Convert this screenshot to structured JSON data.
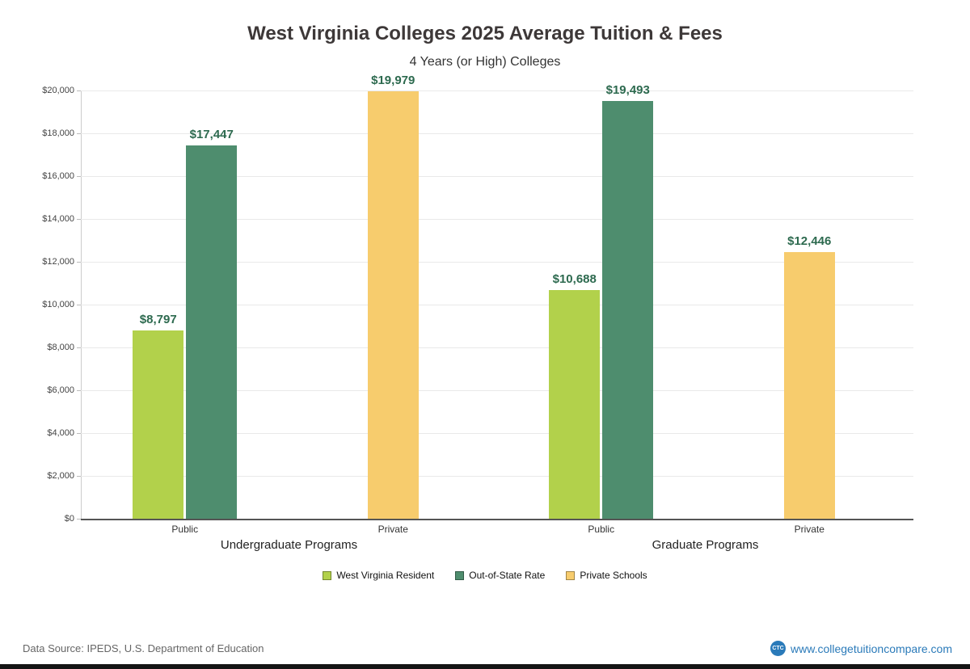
{
  "chart_data": {
    "type": "bar",
    "title": "West Virginia Colleges 2025 Average Tuition & Fees",
    "subtitle": "4 Years (or High) Colleges",
    "y_axis": {
      "min": 0,
      "max": 20000,
      "step": 2000,
      "tick_labels": [
        "$0",
        "$2,000",
        "$4,000",
        "$6,000",
        "$8,000",
        "$10,000",
        "$12,000",
        "$14,000",
        "$16,000",
        "$18,000",
        "$20,000"
      ]
    },
    "series_colors": {
      "West Virginia Resident": "#b2d14b",
      "Out-of-State Rate": "#4e8d6e",
      "Private Schools": "#f7cc6d"
    },
    "legend": [
      "West Virginia Resident",
      "Out-of-State Rate",
      "Private Schools"
    ],
    "groups": [
      {
        "label": "Undergraduate Programs",
        "categories": [
          {
            "label": "Public",
            "bars": [
              {
                "series": "West Virginia Resident",
                "value": 8797,
                "display": "$8,797"
              },
              {
                "series": "Out-of-State Rate",
                "value": 17447,
                "display": "$17,447"
              }
            ]
          },
          {
            "label": "Private",
            "bars": [
              {
                "series": "Private Schools",
                "value": 19979,
                "display": "$19,979"
              }
            ]
          }
        ]
      },
      {
        "label": "Graduate Programs",
        "categories": [
          {
            "label": "Public",
            "bars": [
              {
                "series": "West Virginia Resident",
                "value": 10688,
                "display": "$10,688"
              },
              {
                "series": "Out-of-State Rate",
                "value": 19493,
                "display": "$19,493"
              }
            ]
          },
          {
            "label": "Private",
            "bars": [
              {
                "series": "Private Schools",
                "value": 12446,
                "display": "$12,446"
              }
            ]
          }
        ]
      }
    ]
  },
  "footer": {
    "data_source": "Data Source: IPEDS, U.S. Department of Education",
    "logo_text": "CTC",
    "website": "www.collegetuitioncompare.com"
  },
  "colors": {
    "value_label": "#2d6a4f",
    "accent_blue": "#2a7ab9"
  }
}
